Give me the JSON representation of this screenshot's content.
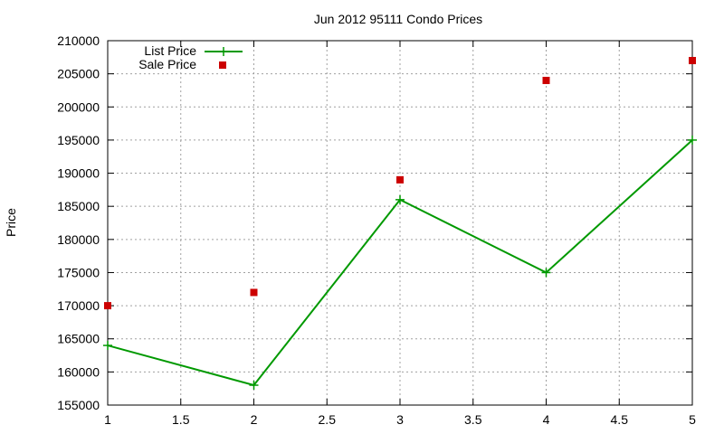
{
  "chart_data": {
    "type": "line",
    "title": "Jun 2012 95111 Condo Prices",
    "xlabel": "",
    "ylabel": "Price",
    "xlim": [
      1,
      5
    ],
    "ylim": [
      155000,
      210000
    ],
    "xticks": [
      "1",
      "1.5",
      "2",
      "2.5",
      "3",
      "3.5",
      "4",
      "4.5",
      "5"
    ],
    "yticks": [
      "155000",
      "160000",
      "165000",
      "170000",
      "175000",
      "180000",
      "185000",
      "190000",
      "195000",
      "200000",
      "205000",
      "210000"
    ],
    "grid": true,
    "legend_position": "top-left",
    "series": [
      {
        "name": "List Price",
        "style": "line-with-plus-markers",
        "color": "#009900",
        "x": [
          1,
          2,
          3,
          4,
          5
        ],
        "values": [
          164000,
          158000,
          186000,
          175000,
          195000
        ]
      },
      {
        "name": "Sale Price",
        "style": "square-markers",
        "color": "#cc0000",
        "x": [
          1,
          2,
          3,
          4,
          5
        ],
        "values": [
          170000,
          172000,
          189000,
          204000,
          207000
        ]
      }
    ]
  }
}
